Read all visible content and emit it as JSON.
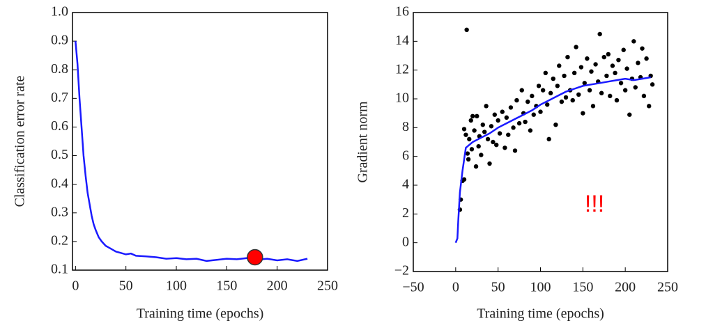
{
  "chart_data": [
    {
      "type": "line",
      "xlabel": "Training time (epochs)",
      "ylabel": "Classification error rate",
      "color": "#1a1aff",
      "x": [
        0,
        2,
        4,
        6,
        8,
        10,
        12,
        14,
        16,
        18,
        20,
        23,
        26,
        30,
        35,
        40,
        45,
        50,
        55,
        60,
        70,
        80,
        90,
        100,
        110,
        120,
        130,
        140,
        150,
        160,
        170,
        180,
        190,
        200,
        210,
        220,
        230
      ],
      "values": [
        0.9,
        0.82,
        0.7,
        0.6,
        0.5,
        0.43,
        0.37,
        0.33,
        0.29,
        0.26,
        0.24,
        0.215,
        0.2,
        0.185,
        0.175,
        0.165,
        0.16,
        0.155,
        0.158,
        0.15,
        0.148,
        0.145,
        0.14,
        0.142,
        0.138,
        0.14,
        0.132,
        0.136,
        0.14,
        0.138,
        0.142,
        0.136,
        0.14,
        0.134,
        0.138,
        0.132,
        0.14
      ],
      "highlight": {
        "x": 178,
        "y": 0.145,
        "color": "#ff0000"
      },
      "xlim": [
        -3,
        250
      ],
      "xticks": [
        0,
        50,
        100,
        150,
        200,
        250
      ],
      "ylim": [
        0.1,
        1.0
      ],
      "yticks": [
        0.1,
        0.2,
        0.3,
        0.4,
        0.5,
        0.6,
        0.7,
        0.8,
        0.9,
        {
          "value": 1.0,
          "label": "1.0"
        }
      ]
    },
    {
      "type": "scatter",
      "xlabel": "Training time (epochs)",
      "ylabel": "Gradient norm",
      "annotation": "!!!",
      "series": [
        {
          "kind": "scatter",
          "color": "#000000",
          "x": [
            5,
            6,
            8,
            10,
            10,
            12,
            13,
            14,
            15,
            16,
            18,
            19,
            20,
            22,
            24,
            25,
            27,
            28,
            30,
            32,
            34,
            36,
            38,
            40,
            42,
            44,
            46,
            48,
            50,
            52,
            55,
            58,
            60,
            62,
            65,
            68,
            70,
            72,
            75,
            78,
            80,
            82,
            85,
            88,
            90,
            92,
            95,
            98,
            100,
            103,
            106,
            108,
            110,
            112,
            115,
            118,
            120,
            122,
            125,
            128,
            130,
            132,
            135,
            138,
            140,
            142,
            145,
            148,
            150,
            152,
            155,
            158,
            160,
            162,
            165,
            168,
            170,
            172,
            175,
            178,
            180,
            182,
            185,
            188,
            190,
            192,
            195,
            198,
            200,
            202,
            205,
            208,
            210,
            212,
            215,
            218,
            220,
            222,
            225,
            228,
            230,
            232
          ],
          "values": [
            2.3,
            3,
            4.3,
            4.4,
            7.9,
            7.5,
            14.8,
            6.2,
            5.8,
            7.2,
            8.5,
            6.5,
            8.8,
            7.8,
            5.3,
            8.8,
            6.7,
            7.4,
            6.1,
            8.2,
            7.7,
            9.5,
            7.2,
            5.5,
            8.1,
            7,
            8.9,
            6.8,
            8.5,
            7.6,
            9.1,
            6.6,
            8.7,
            7.5,
            9.4,
            8,
            6.4,
            9.9,
            8.3,
            10.6,
            9,
            8.4,
            9.8,
            7.8,
            10.2,
            8.9,
            9.5,
            10.9,
            9.1,
            10.6,
            11.8,
            9.6,
            7.2,
            10.4,
            11.4,
            8.2,
            10.9,
            12.3,
            9.8,
            11.6,
            10.1,
            12.9,
            10.6,
            9.9,
            11.8,
            13.6,
            10.3,
            12.2,
            9,
            11.1,
            12.8,
            10.6,
            11.9,
            9.5,
            12.4,
            11.2,
            14.5,
            10.4,
            12.9,
            11.6,
            13.1,
            10.2,
            12.3,
            11.8,
            9.9,
            12.7,
            11.1,
            13.4,
            10.6,
            12.1,
            8.9,
            11.4,
            14,
            10.8,
            12.5,
            11.5,
            13.5,
            10.2,
            12.8,
            9.5,
            11.6,
            11
          ]
        },
        {
          "kind": "line",
          "color": "#1a1aff",
          "x": [
            0,
            2,
            3,
            5,
            8,
            12,
            20,
            30,
            40,
            50,
            60,
            70,
            80,
            90,
            100,
            110,
            120,
            130,
            140,
            150,
            160,
            170,
            180,
            190,
            200,
            210,
            220,
            230
          ],
          "values": [
            0,
            0.3,
            1.5,
            3.5,
            5,
            6.6,
            7,
            7.3,
            7.6,
            8,
            8.3,
            8.6,
            8.9,
            9.2,
            9.6,
            9.9,
            10.2,
            10.5,
            10.7,
            10.9,
            11,
            11.1,
            11.2,
            11.3,
            11.4,
            11.3,
            11.4,
            11.5
          ]
        }
      ],
      "xlim": [
        -50,
        250
      ],
      "xticks": [
        {
          "value": -50,
          "label": "−50"
        },
        0,
        50,
        100,
        150,
        200,
        250
      ],
      "ylim": [
        -2,
        16
      ],
      "yticks": [
        {
          "value": -2,
          "label": "−2"
        },
        0,
        2,
        4,
        6,
        8,
        10,
        12,
        14,
        16
      ]
    }
  ]
}
